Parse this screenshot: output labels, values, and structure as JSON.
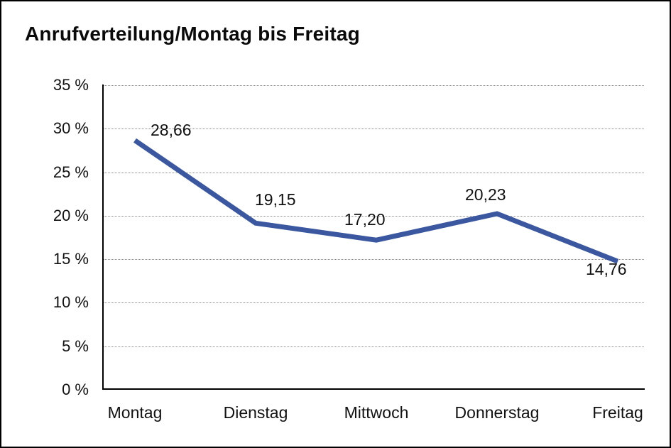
{
  "chart_data": {
    "type": "line",
    "title": "Anrufverteilung/Montag bis Freitag",
    "categories": [
      "Montag",
      "Dienstag",
      "Mittwoch",
      "Donnerstag",
      "Freitag"
    ],
    "values": [
      28.66,
      19.15,
      17.2,
      20.23,
      14.76
    ],
    "data_labels": [
      "28,66",
      "19,15",
      "17,20",
      "20,23",
      "14,76"
    ],
    "y_tick_labels": [
      "0 %",
      "5 %",
      "10 %",
      "15 %",
      "20 %",
      "25 %",
      "30 %",
      "35 %"
    ],
    "y_tick_values": [
      0,
      5,
      10,
      15,
      20,
      25,
      30,
      35
    ],
    "xlabel": "",
    "ylabel": "",
    "ylim": [
      0,
      35
    ],
    "grid": "horizontal-dotted",
    "legend": "none",
    "colors": {
      "line": "#3A57A0",
      "grid": "#8A8A8A",
      "axis": "#000000",
      "text": "#111111",
      "background": "#FFFFFF",
      "frame_border": "#000000"
    }
  }
}
